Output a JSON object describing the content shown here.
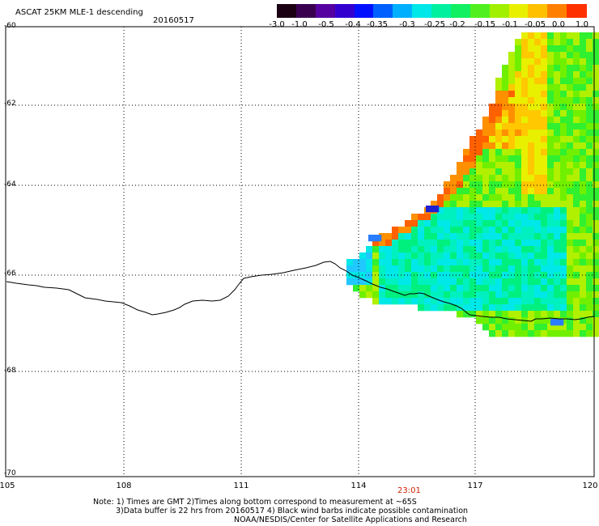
{
  "header": {
    "title": "ASCAT 25KM MLE-1 descending",
    "date": "20160517"
  },
  "colorbar": {
    "labels": [
      "-3.0",
      "-1.0",
      "-0.5",
      "-0.4",
      "-0.35",
      "-0.3",
      "-0.25",
      "-0.2",
      "-0.15",
      "-0.1",
      "-0.05",
      "0.0",
      "1.0"
    ],
    "colors": [
      "#1a0012",
      "#3a0050",
      "#5500a0",
      "#3300d0",
      "#0010ff",
      "#0060ff",
      "#00b0ff",
      "#00e8e8",
      "#00f0a0",
      "#10f060",
      "#50f020",
      "#a0f000",
      "#e8f000",
      "#ffc000",
      "#ff8000",
      "#ff3000"
    ]
  },
  "axes": {
    "lat_labels": [
      "-60",
      "-62",
      "-64",
      "-66",
      "-68",
      "-70"
    ],
    "lon_labels": [
      "105",
      "108",
      "111",
      "114",
      "117",
      "120"
    ]
  },
  "time_label": "23:01",
  "time_color": "#cc2200",
  "notes": {
    "line1": "Note: 1) Times are GMT 2)Times along bottom correspond to measurement at ~65S",
    "line2": "3)Data buffer is 22 hrs from 20160517 4) Black wind barbs indicate possible contamination",
    "line3": "NOAA/NESDIS/Center for Satellite Applications and Research"
  }
}
